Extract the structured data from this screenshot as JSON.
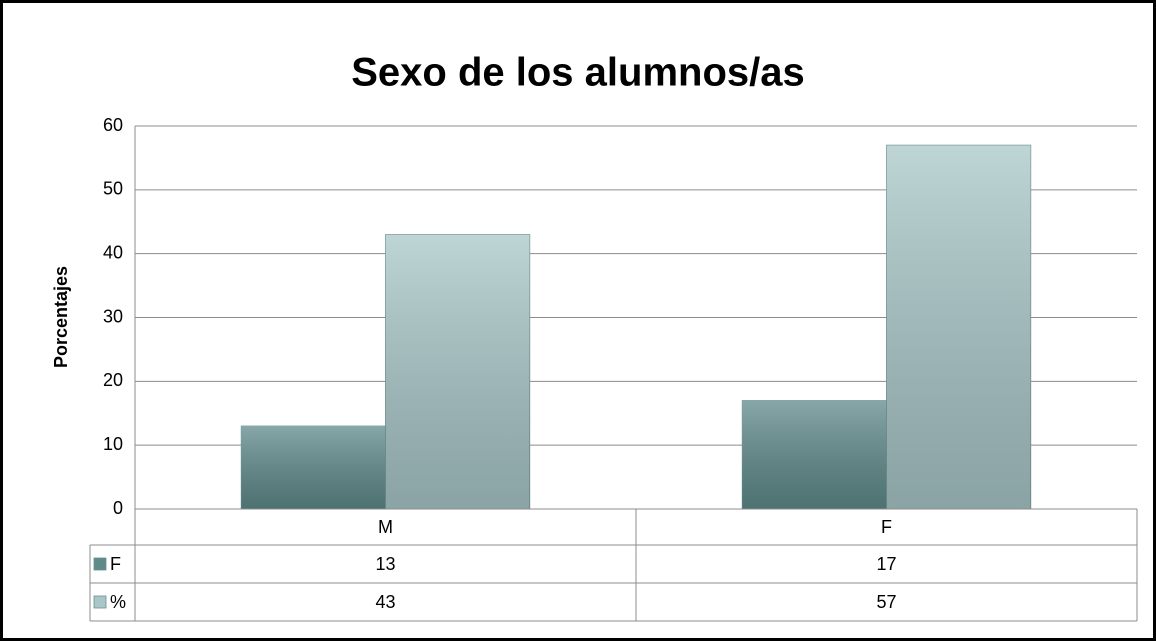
{
  "chart_data": {
    "type": "bar",
    "title": "Sexo de los alumnos/as",
    "y_label": "Porcentajes",
    "categories": [
      "M",
      "F"
    ],
    "series": [
      {
        "name": "F",
        "color": "#5f8a8b",
        "values": [
          13,
          17
        ]
      },
      {
        "name": "%",
        "color": "#a9c7c8",
        "values": [
          43,
          57
        ]
      }
    ],
    "ylim": [
      0,
      60
    ],
    "yticks": [
      0,
      10,
      20,
      30,
      40,
      50,
      60
    ],
    "grid": true,
    "data_table": true
  }
}
